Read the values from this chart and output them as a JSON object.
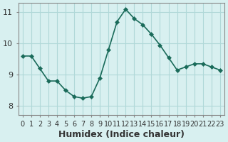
{
  "x": [
    0,
    1,
    2,
    3,
    4,
    5,
    6,
    7,
    8,
    9,
    10,
    11,
    12,
    13,
    14,
    15,
    16,
    17,
    18,
    19,
    20,
    21,
    22,
    23
  ],
  "y": [
    9.6,
    9.6,
    9.2,
    8.8,
    8.8,
    8.5,
    8.3,
    8.25,
    8.3,
    8.9,
    9.8,
    10.7,
    11.1,
    10.8,
    10.6,
    10.3,
    9.95,
    9.55,
    9.15,
    9.25,
    9.35,
    9.35,
    9.25,
    9.15
  ],
  "line_color": "#1a6b5a",
  "marker": "D",
  "marker_size": 3,
  "bg_color": "#d8f0f0",
  "grid_color": "#b0d8d8",
  "xlabel": "Humidex (Indice chaleur)",
  "ylabel": "",
  "title": "",
  "xlim": [
    0,
    23
  ],
  "ylim": [
    7.7,
    11.3
  ],
  "yticks": [
    8,
    9,
    10,
    11
  ],
  "xtick_labels": [
    "0",
    "1",
    "2",
    "3",
    "4",
    "5",
    "6",
    "7",
    "8",
    "9",
    "10",
    "11",
    "12",
    "13",
    "14",
    "15",
    "16",
    "17",
    "18",
    "19",
    "20",
    "21",
    "22",
    "23"
  ],
  "xlabel_fontsize": 9,
  "tick_fontsize": 8
}
